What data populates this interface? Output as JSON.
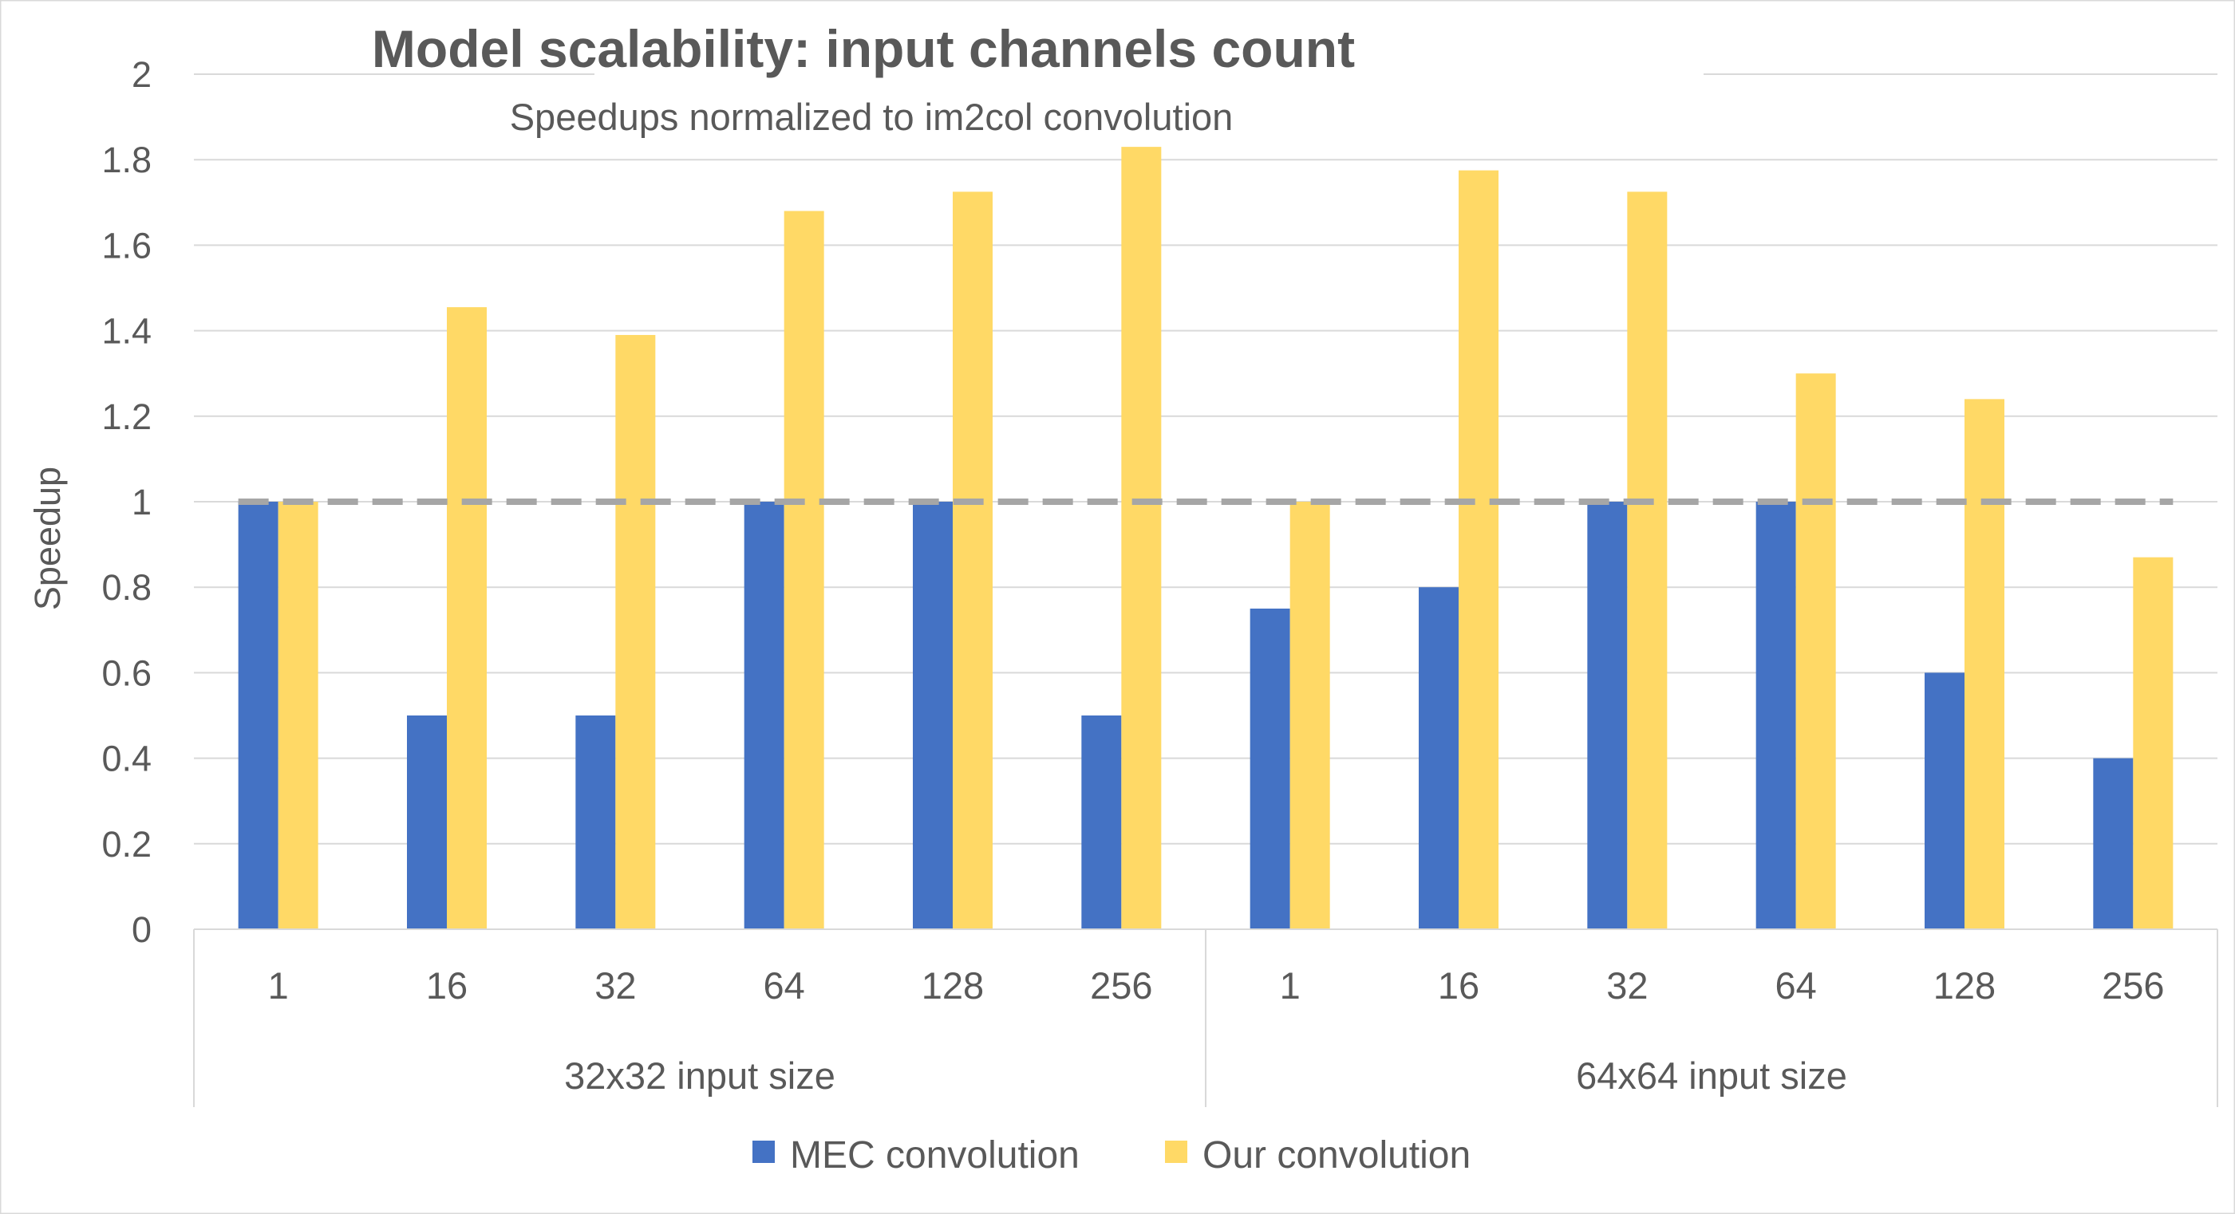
{
  "chart_data": {
    "type": "bar",
    "title": "Model scalability: input channels count",
    "subtitle": "Speedups normalized to im2col convolution",
    "ylabel": "Speedup",
    "xlabel": "",
    "ylim": [
      0,
      2
    ],
    "yticks": [
      "0",
      "0.2",
      "0.4",
      "0.6",
      "0.8",
      "1",
      "1.2",
      "1.4",
      "1.6",
      "1.8",
      "2"
    ],
    "groups": [
      {
        "label": "32x32 input size",
        "categories": [
          "1",
          "16",
          "32",
          "64",
          "128",
          "256"
        ]
      },
      {
        "label": "64x64 input size",
        "categories": [
          "1",
          "16",
          "32",
          "64",
          "128",
          "256"
        ]
      }
    ],
    "series": [
      {
        "name": "MEC convolution",
        "color": "#4472C4",
        "values": [
          1.0,
          0.5,
          0.5,
          1.0,
          1.0,
          0.5,
          0.75,
          0.8,
          1.0,
          1.0,
          0.6,
          0.4
        ]
      },
      {
        "name": "Our convolution",
        "color": "#FFD966",
        "values": [
          1.0,
          1.455,
          1.39,
          1.68,
          1.725,
          1.83,
          1.0,
          1.775,
          1.725,
          1.3,
          1.24,
          0.87
        ]
      }
    ],
    "reference_line": {
      "value": 1,
      "style": "dashed",
      "color": "#A6A6A6"
    },
    "grid": true,
    "legend_position": "bottom"
  }
}
